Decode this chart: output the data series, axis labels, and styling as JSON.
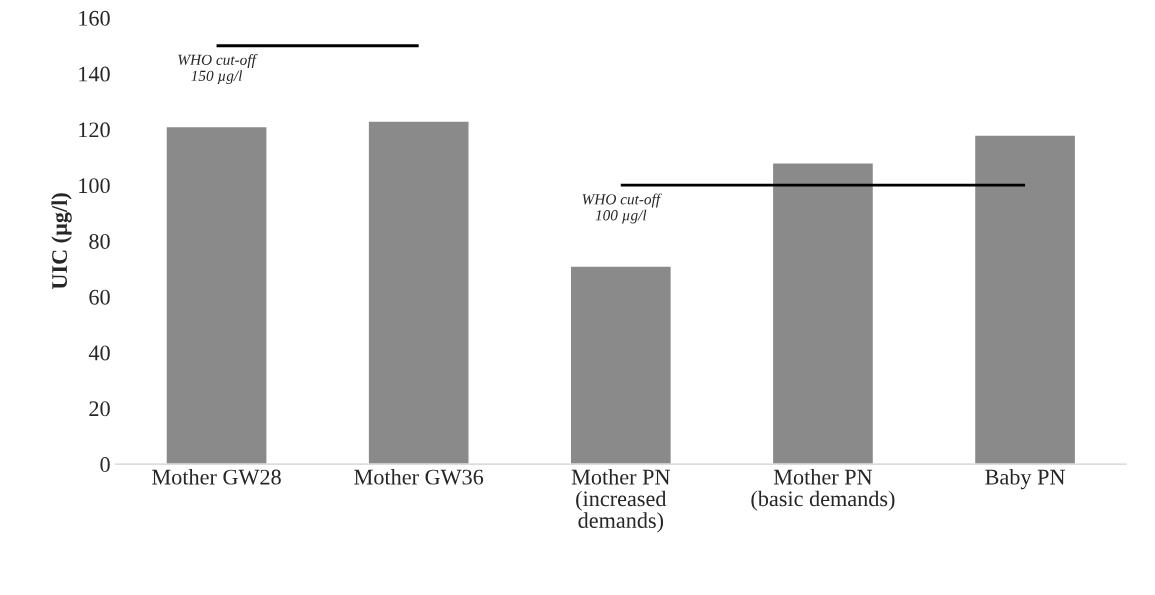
{
  "chart_data": {
    "type": "bar",
    "ylabel": "UIC (µg/l)",
    "categories": [
      "Mother GW28",
      "Mother GW36",
      "Mother PN\n(increased\ndemands)",
      "Mother PN\n(basic demands)",
      "Baby PN"
    ],
    "ylim": [
      0,
      160
    ],
    "yticks": [
      0,
      20,
      40,
      60,
      80,
      100,
      120,
      140,
      160
    ],
    "grid": false,
    "series": [
      {
        "color": "#8a8a8a",
        "values": [
          121,
          123,
          71,
          108,
          118
        ]
      },
      {
        "type": "line",
        "color": "#000000",
        "values": [
          150,
          150,
          null,
          null,
          null
        ]
      },
      {
        "type": "line",
        "color": "#000000",
        "values": [
          null,
          null,
          100,
          100,
          100
        ]
      }
    ],
    "annotations": [
      {
        "text": "WHO cut-off\n150 µg/l",
        "x": "Mother GW28",
        "y": 150
      },
      {
        "text": "WHO cut-off\n100 µg/l",
        "x": "Mother PN\n(increased\ndemands)",
        "y": 100
      }
    ]
  }
}
